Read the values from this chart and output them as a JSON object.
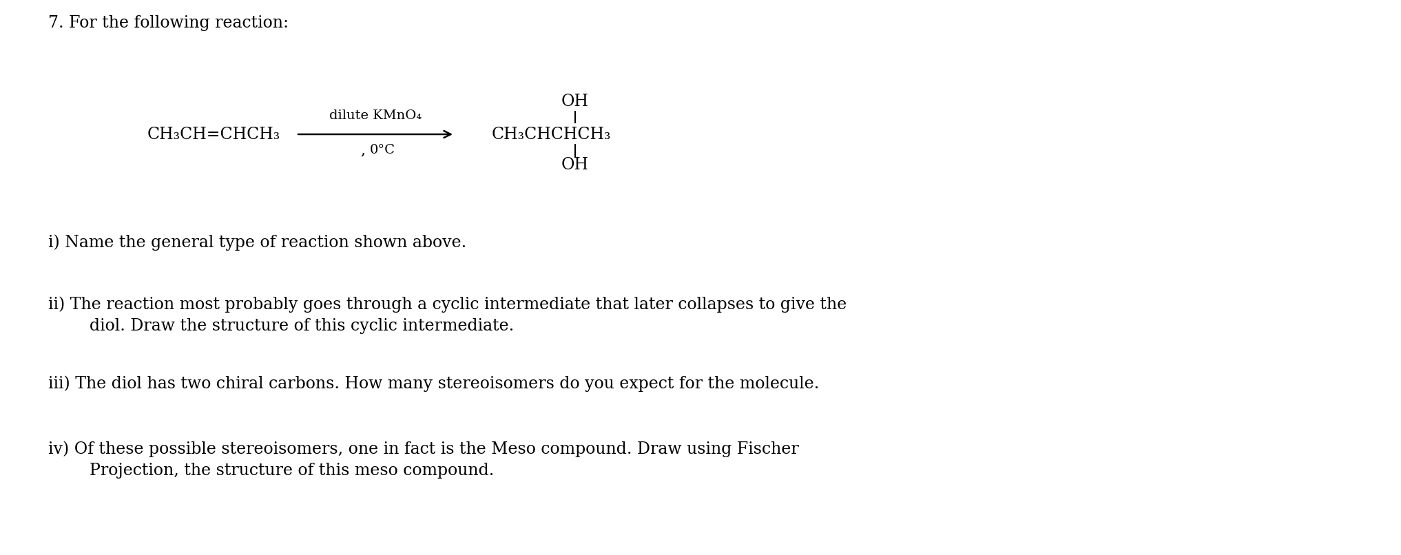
{
  "background_color": "#ffffff",
  "figsize": [
    20.34,
    8.06
  ],
  "dpi": 100,
  "font_family": "DejaVu Serif",
  "title_text": "7. For the following reaction:",
  "title_fontsize": 17,
  "reactant_text": "CH₃CH=CHCH₃",
  "reagent_top_text": "dilute KMnO₄",
  "reagent_bot_text": "0°C",
  "product_oh_top_text": "OH",
  "product_main_text": "CH₃CHCHCH₃",
  "product_oh_bot_text": "OH",
  "chem_fontsize": 17,
  "reagent_fontsize": 14,
  "question_i_text": "i) Name the general type of reaction shown above.",
  "question_ii_text1": "ii) The reaction most probably goes through a cyclic intermediate that later collapses to give the",
  "question_ii_text2": "        diol. Draw the structure of this cyclic intermediate.",
  "question_iii_text": "iii) The diol has two chiral carbons. How many stereoisomers do you expect for the molecule.",
  "question_iv_text1": "iv) Of these possible stereoisomers, one in fact is the Meso compound. Draw using Fischer",
  "question_iv_text2": "        Projection, the structure of this meso compound.",
  "text_fontsize": 17
}
